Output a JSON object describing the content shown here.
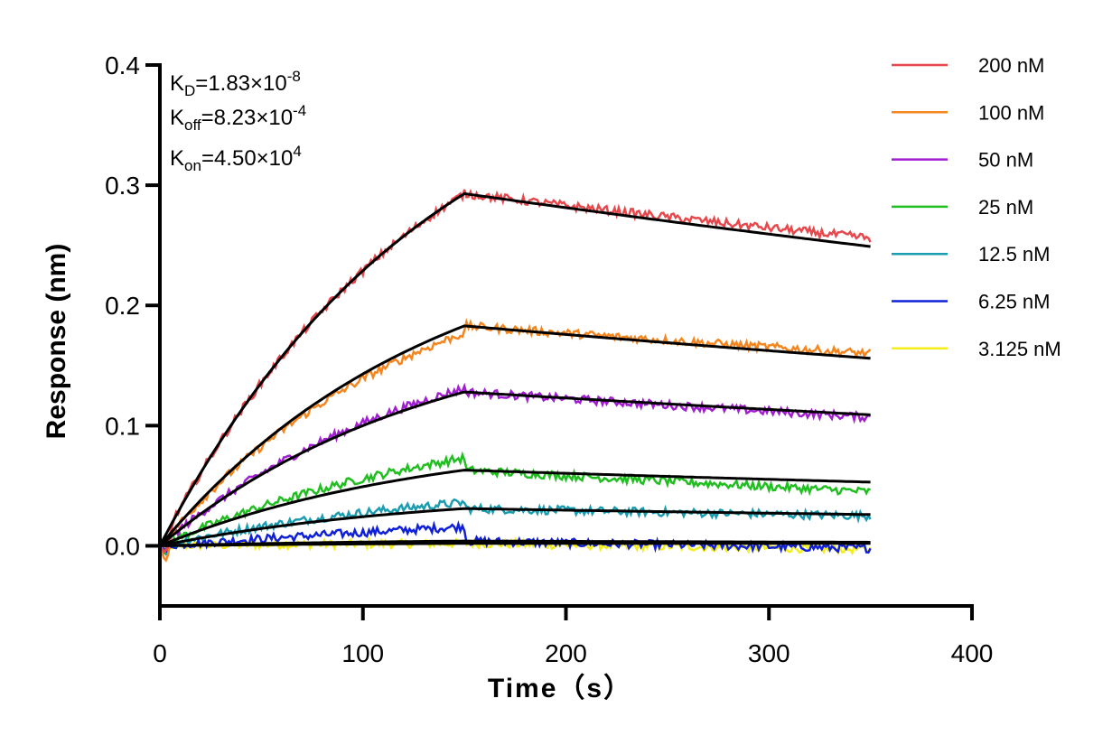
{
  "chart_data": {
    "type": "line",
    "title": "",
    "xlabel": "Time（s）",
    "ylabel": "Response (nm)",
    "xlim": [
      0,
      400
    ],
    "ylim": [
      -0.05,
      0.4
    ],
    "x_ticks": [
      0,
      100,
      200,
      300,
      400
    ],
    "x_tick_labels": [
      "0",
      "100",
      "200",
      "300",
      "400"
    ],
    "y_ticks": [
      0.0,
      0.1,
      0.2,
      0.3,
      0.4
    ],
    "y_tick_labels": [
      "0.0",
      "0.1",
      "0.2",
      "0.3",
      "0.4"
    ],
    "grid": false,
    "legend_position": "right",
    "annotations": {
      "kd": {
        "prefix": "K",
        "sub": "D",
        "value": "=1.83×10",
        "exp": "-8"
      },
      "koff": {
        "prefix": "K",
        "sub": "off",
        "value": "=8.23×10",
        "exp": "-4"
      },
      "kon": {
        "prefix": "K",
        "sub": "on",
        "value": "=4.50×10",
        "exp": "4"
      }
    },
    "association_end_s": 150,
    "dissociation_end_s": 350,
    "series": [
      {
        "name": "200 nM",
        "color": "#e8474b",
        "peak": 0.293,
        "end": 0.249,
        "end_observed": 0.256,
        "jump": 0.0
      },
      {
        "name": "100 nM",
        "color": "#f5861f",
        "peak": 0.183,
        "end": 0.156,
        "end_observed": 0.16,
        "jump": -0.006
      },
      {
        "name": "50 nM",
        "color": "#a21ed2",
        "peak": 0.128,
        "end": 0.109,
        "end_observed": 0.107,
        "jump": 0.003
      },
      {
        "name": "25 nM",
        "color": "#1fbf1f",
        "peak": 0.063,
        "end": 0.053,
        "end_observed": 0.045,
        "jump": 0.01
      },
      {
        "name": "12.5 nM",
        "color": "#1a9db0",
        "peak": 0.031,
        "end": 0.026,
        "end_observed": 0.025,
        "jump": 0.005
      },
      {
        "name": "6.25 nM",
        "color": "#1020d8",
        "peak": 0.004,
        "end": 0.003,
        "end_observed": -0.002,
        "jump": 0.012
      },
      {
        "name": "3.125 nM",
        "color": "#f5ee1a",
        "peak": 0.002,
        "end": 0.002,
        "end_observed": -0.003,
        "jump": 0.0
      }
    ],
    "fit_color": "#000000"
  }
}
